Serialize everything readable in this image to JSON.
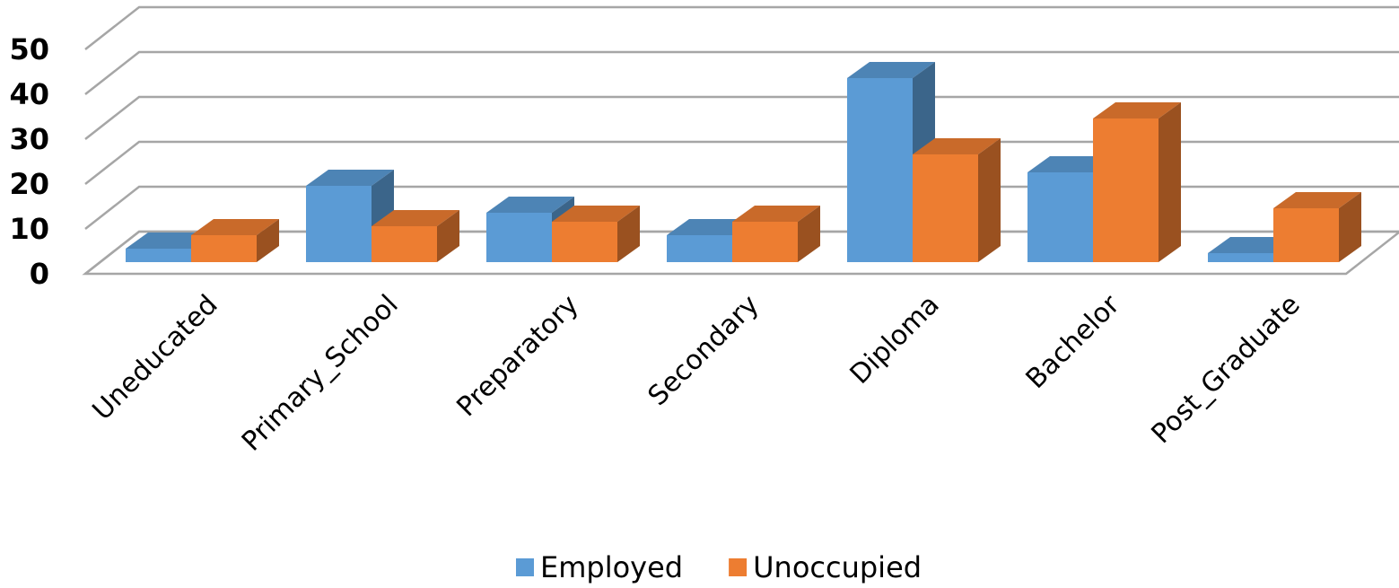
{
  "chart_data": {
    "type": "bar3d",
    "categories": [
      "Uneducated",
      "Primary_School",
      "Preparatory",
      "Secondary",
      "Diploma",
      "Bachelor",
      "Post_Graduate"
    ],
    "series": [
      {
        "name": "Employed",
        "color": "#5b9bd5",
        "values": [
          3,
          17,
          11,
          6,
          41,
          20,
          2
        ]
      },
      {
        "name": "Unoccupied",
        "color": "#ed7d31",
        "values": [
          6,
          8,
          9,
          9,
          24,
          32,
          12
        ]
      }
    ],
    "ylim": [
      0,
      50
    ],
    "yticks": [
      0,
      10,
      20,
      30,
      40,
      50
    ],
    "grid": true,
    "legend": "bottom"
  }
}
